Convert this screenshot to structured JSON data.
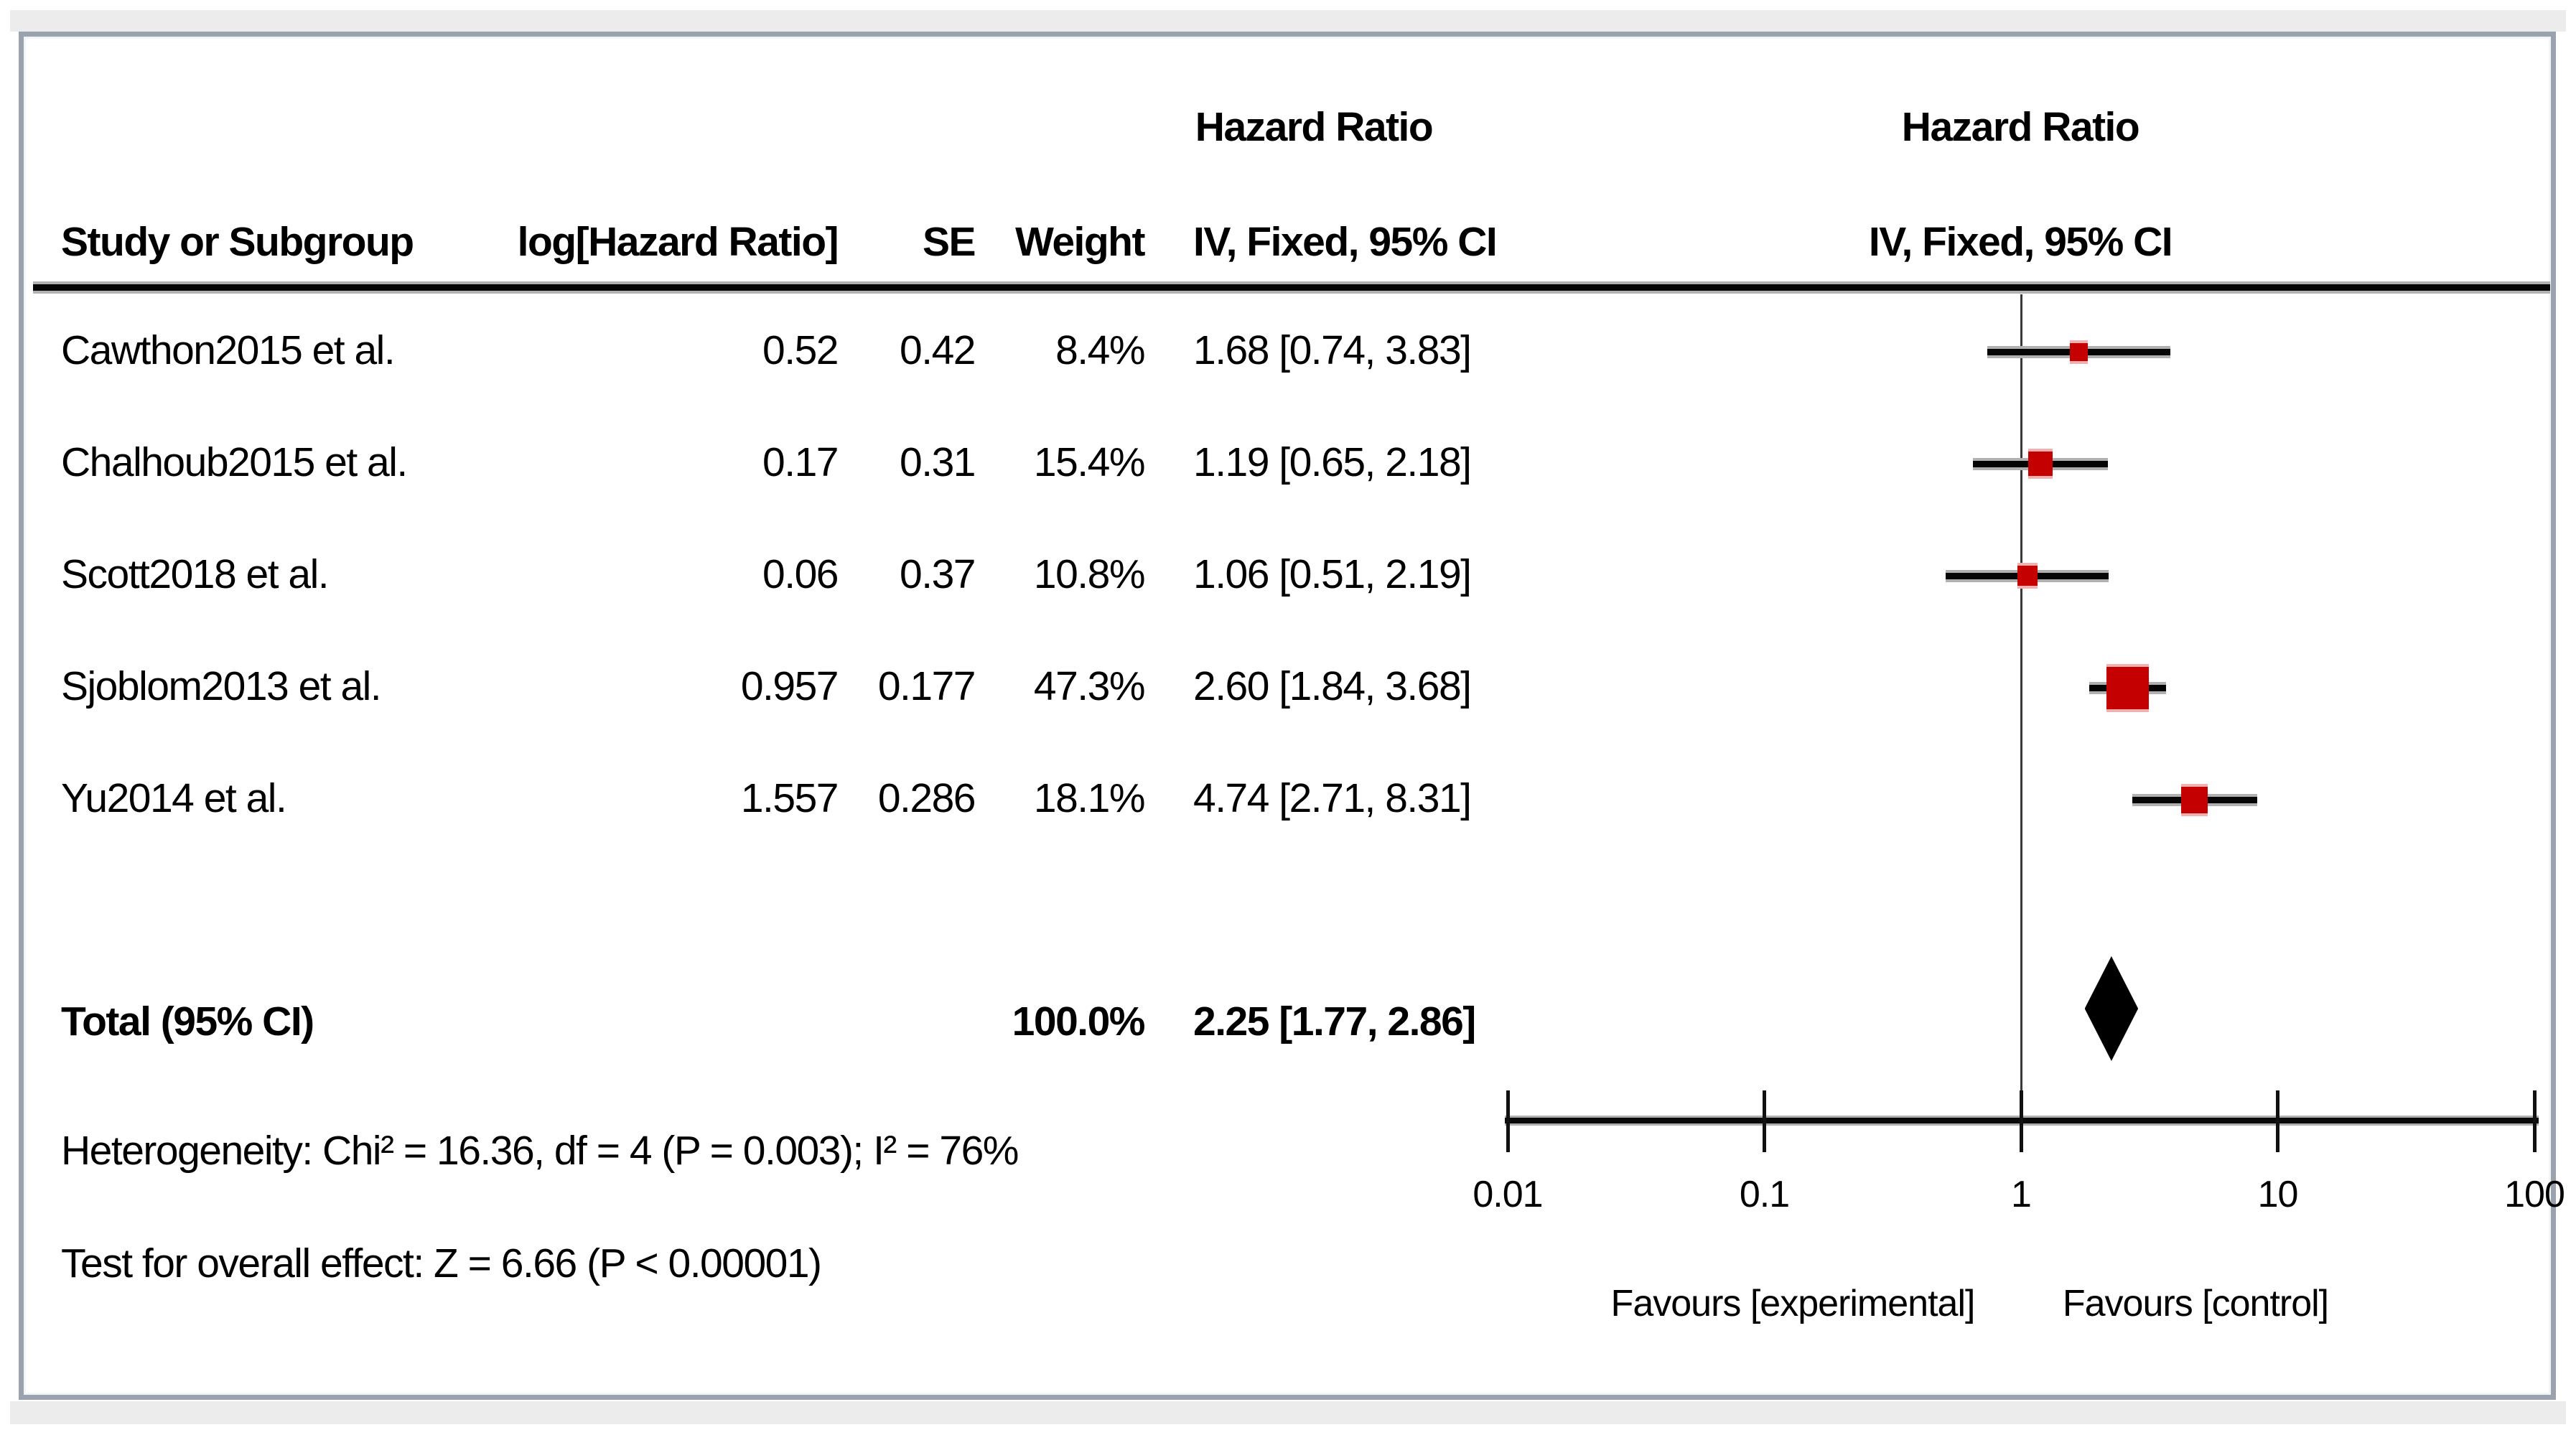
{
  "figure": {
    "col_headers": {
      "study": "Study or Subgroup",
      "log_hr": "log[Hazard Ratio]",
      "se": "SE",
      "weight": "Weight",
      "effect_title": "Hazard Ratio",
      "effect_sub": "IV, Fixed, 95% CI",
      "plot_title": "Hazard Ratio",
      "plot_sub": "IV, Fixed, 95% CI"
    },
    "rows": [
      {
        "name": "Cawthon2015 et al.",
        "log_hr": "0.52",
        "se": "0.42",
        "weight": "8.4%",
        "effect": "1.68 [0.74, 3.83]"
      },
      {
        "name": "Chalhoub2015 et al.",
        "log_hr": "0.17",
        "se": "0.31",
        "weight": "15.4%",
        "effect": "1.19 [0.65, 2.18]"
      },
      {
        "name": "Scott2018 et al.",
        "log_hr": "0.06",
        "se": "0.37",
        "weight": "10.8%",
        "effect": "1.06 [0.51, 2.19]"
      },
      {
        "name": "Sjoblom2013 et al.",
        "log_hr": "0.957",
        "se": "0.177",
        "weight": "47.3%",
        "effect": "2.60 [1.84, 3.68]"
      },
      {
        "name": "Yu2014 et al.",
        "log_hr": "1.557",
        "se": "0.286",
        "weight": "18.1%",
        "effect": "4.74 [2.71, 8.31]"
      }
    ],
    "total": {
      "label": "Total (95% CI)",
      "weight": "100.0%",
      "effect": "2.25 [1.77, 2.86]"
    },
    "heterogeneity": "Heterogeneity: Chi² = 16.36, df = 4 (P = 0.003); I² = 76%",
    "overall_effect": "Test for overall effect: Z = 6.66 (P < 0.00001)"
  },
  "chart_data": {
    "type": "forest",
    "x_scale": "log10",
    "x_range": [
      0.01,
      100
    ],
    "tick_values": [
      0.01,
      0.1,
      1,
      10,
      100
    ],
    "tick_labels": [
      "0.01",
      "0.1",
      "1",
      "10",
      "100"
    ],
    "ref_line": 1,
    "favours_left": "Favours [experimental]",
    "favours_right": "Favours [control]",
    "studies": [
      {
        "name": "Cawthon2015 et al.",
        "hr": 1.68,
        "ci_low": 0.74,
        "ci_high": 3.83,
        "weight_pct": 8.4
      },
      {
        "name": "Chalhoub2015 et al.",
        "hr": 1.19,
        "ci_low": 0.65,
        "ci_high": 2.18,
        "weight_pct": 15.4
      },
      {
        "name": "Scott2018 et al.",
        "hr": 1.06,
        "ci_low": 0.51,
        "ci_high": 2.19,
        "weight_pct": 10.8
      },
      {
        "name": "Sjoblom2013 et al.",
        "hr": 2.6,
        "ci_low": 1.84,
        "ci_high": 3.68,
        "weight_pct": 47.3
      },
      {
        "name": "Yu2014 et al.",
        "hr": 4.74,
        "ci_low": 2.71,
        "ci_high": 8.31,
        "weight_pct": 18.1
      }
    ],
    "total": {
      "hr": 2.25,
      "ci_low": 1.77,
      "ci_high": 2.86
    },
    "colors": {
      "marker": "#c40000",
      "diamond": "#000000",
      "ci_line": "#050505",
      "axis": "#0a0a0a"
    }
  }
}
